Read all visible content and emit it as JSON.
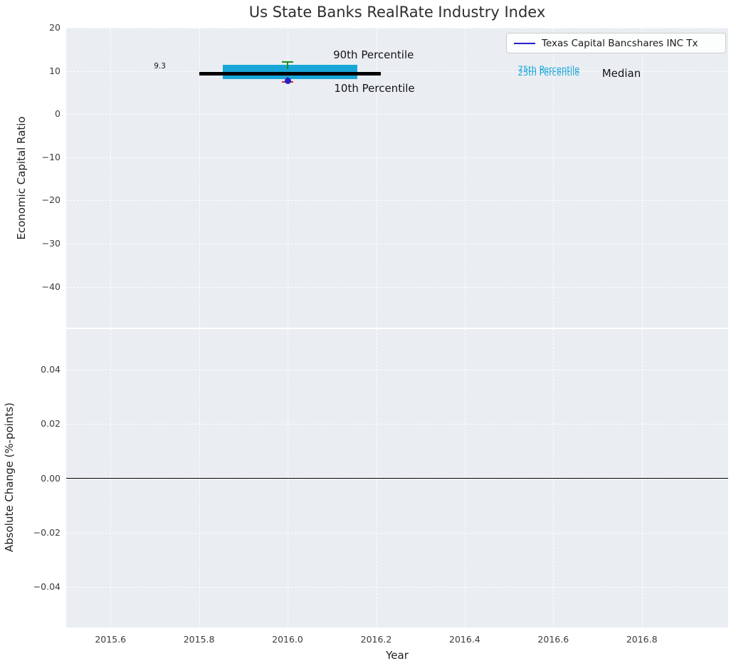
{
  "figure": {
    "title": "Us State Banks RealRate Industry Index"
  },
  "chart_data": [
    {
      "type": "line",
      "subplot": "top",
      "ylabel": "Economic Capital Ratio",
      "xlim": [
        2015.5,
        2016.995
      ],
      "ylim": [
        -49.5,
        20
      ],
      "grid": true,
      "xticks": [
        2015.6,
        2015.8,
        2016.0,
        2016.2,
        2016.4,
        2016.6,
        2016.8
      ],
      "yticks": [
        {
          "value": 20,
          "label": "20"
        },
        {
          "value": 10,
          "label": "10"
        },
        {
          "value": 0,
          "label": "0"
        },
        {
          "value": -10,
          "label": "−10"
        },
        {
          "value": -20,
          "label": "−20"
        },
        {
          "value": -30,
          "label": "−30"
        },
        {
          "value": -40,
          "label": "−40"
        }
      ],
      "legend": {
        "position": "upper right",
        "entries": [
          {
            "label": "Texas Capital Bancshares INC Tx",
            "color": "#2222cc"
          }
        ]
      },
      "median_line": {
        "value": 9.3,
        "label": "9.3",
        "x_start": 2015.8,
        "x_end": 2016.21,
        "color": "#000000"
      },
      "iqr_band": {
        "p25": 8.1,
        "p75": 11.4,
        "x_start": 2015.854,
        "x_end": 2016.158,
        "color": "#18a6d8"
      },
      "p90_marker": {
        "x": 2016.0,
        "value": 12.05,
        "stem_to": 10.4,
        "color": "#1e8c1e"
      },
      "p10_marker": {
        "x": 2016.0,
        "value": 7.45,
        "stem_to": 8.6,
        "color": "#d62728"
      },
      "series": [
        {
          "name": "Texas Capital Bancshares INC Tx",
          "style": "point",
          "color": "#2222cc",
          "x": [
            2016.0
          ],
          "y": [
            7.75
          ]
        }
      ],
      "annotations": [
        {
          "text": "90th Percentile",
          "x": 2016.103,
          "y": 13.6,
          "color": "#141414",
          "size": 15
        },
        {
          "text": "10th Percentile",
          "x": 2016.105,
          "y": 5.9,
          "color": "#141414",
          "size": 15
        },
        {
          "text": "9.3",
          "x": 2015.698,
          "y": 10.9,
          "color": "#141414",
          "size": 10.5
        },
        {
          "text": "75th Percentile",
          "x": 2016.52,
          "y": 10.35,
          "color": "#18a6d8",
          "size": 11.5
        },
        {
          "text": "25th Percentile",
          "x": 2016.52,
          "y": 9.55,
          "color": "#18a6d8",
          "size": 11.5
        },
        {
          "text": "Median",
          "x": 2016.71,
          "y": 9.35,
          "color": "#141414",
          "size": 15
        }
      ]
    },
    {
      "type": "line",
      "subplot": "bottom",
      "ylabel": "Absolute Change (%-points)",
      "xlabel": "Year",
      "xlim": [
        2015.5,
        2016.995
      ],
      "ylim": [
        -0.055,
        0.055
      ],
      "grid": true,
      "xticks": [
        {
          "value": 2015.6,
          "label": "2015.6"
        },
        {
          "value": 2015.8,
          "label": "2015.8"
        },
        {
          "value": 2016.0,
          "label": "2016.0"
        },
        {
          "value": 2016.2,
          "label": "2016.2"
        },
        {
          "value": 2016.4,
          "label": "2016.4"
        },
        {
          "value": 2016.6,
          "label": "2016.6"
        },
        {
          "value": 2016.8,
          "label": "2016.8"
        }
      ],
      "yticks": [
        {
          "value": 0.04,
          "label": "0.04"
        },
        {
          "value": 0.02,
          "label": "0.02"
        },
        {
          "value": 0.0,
          "label": "0.00"
        },
        {
          "value": -0.02,
          "label": "−0.02"
        },
        {
          "value": -0.04,
          "label": "−0.04"
        }
      ],
      "zero_line": {
        "value": 0.0,
        "color": "#000000"
      }
    }
  ]
}
